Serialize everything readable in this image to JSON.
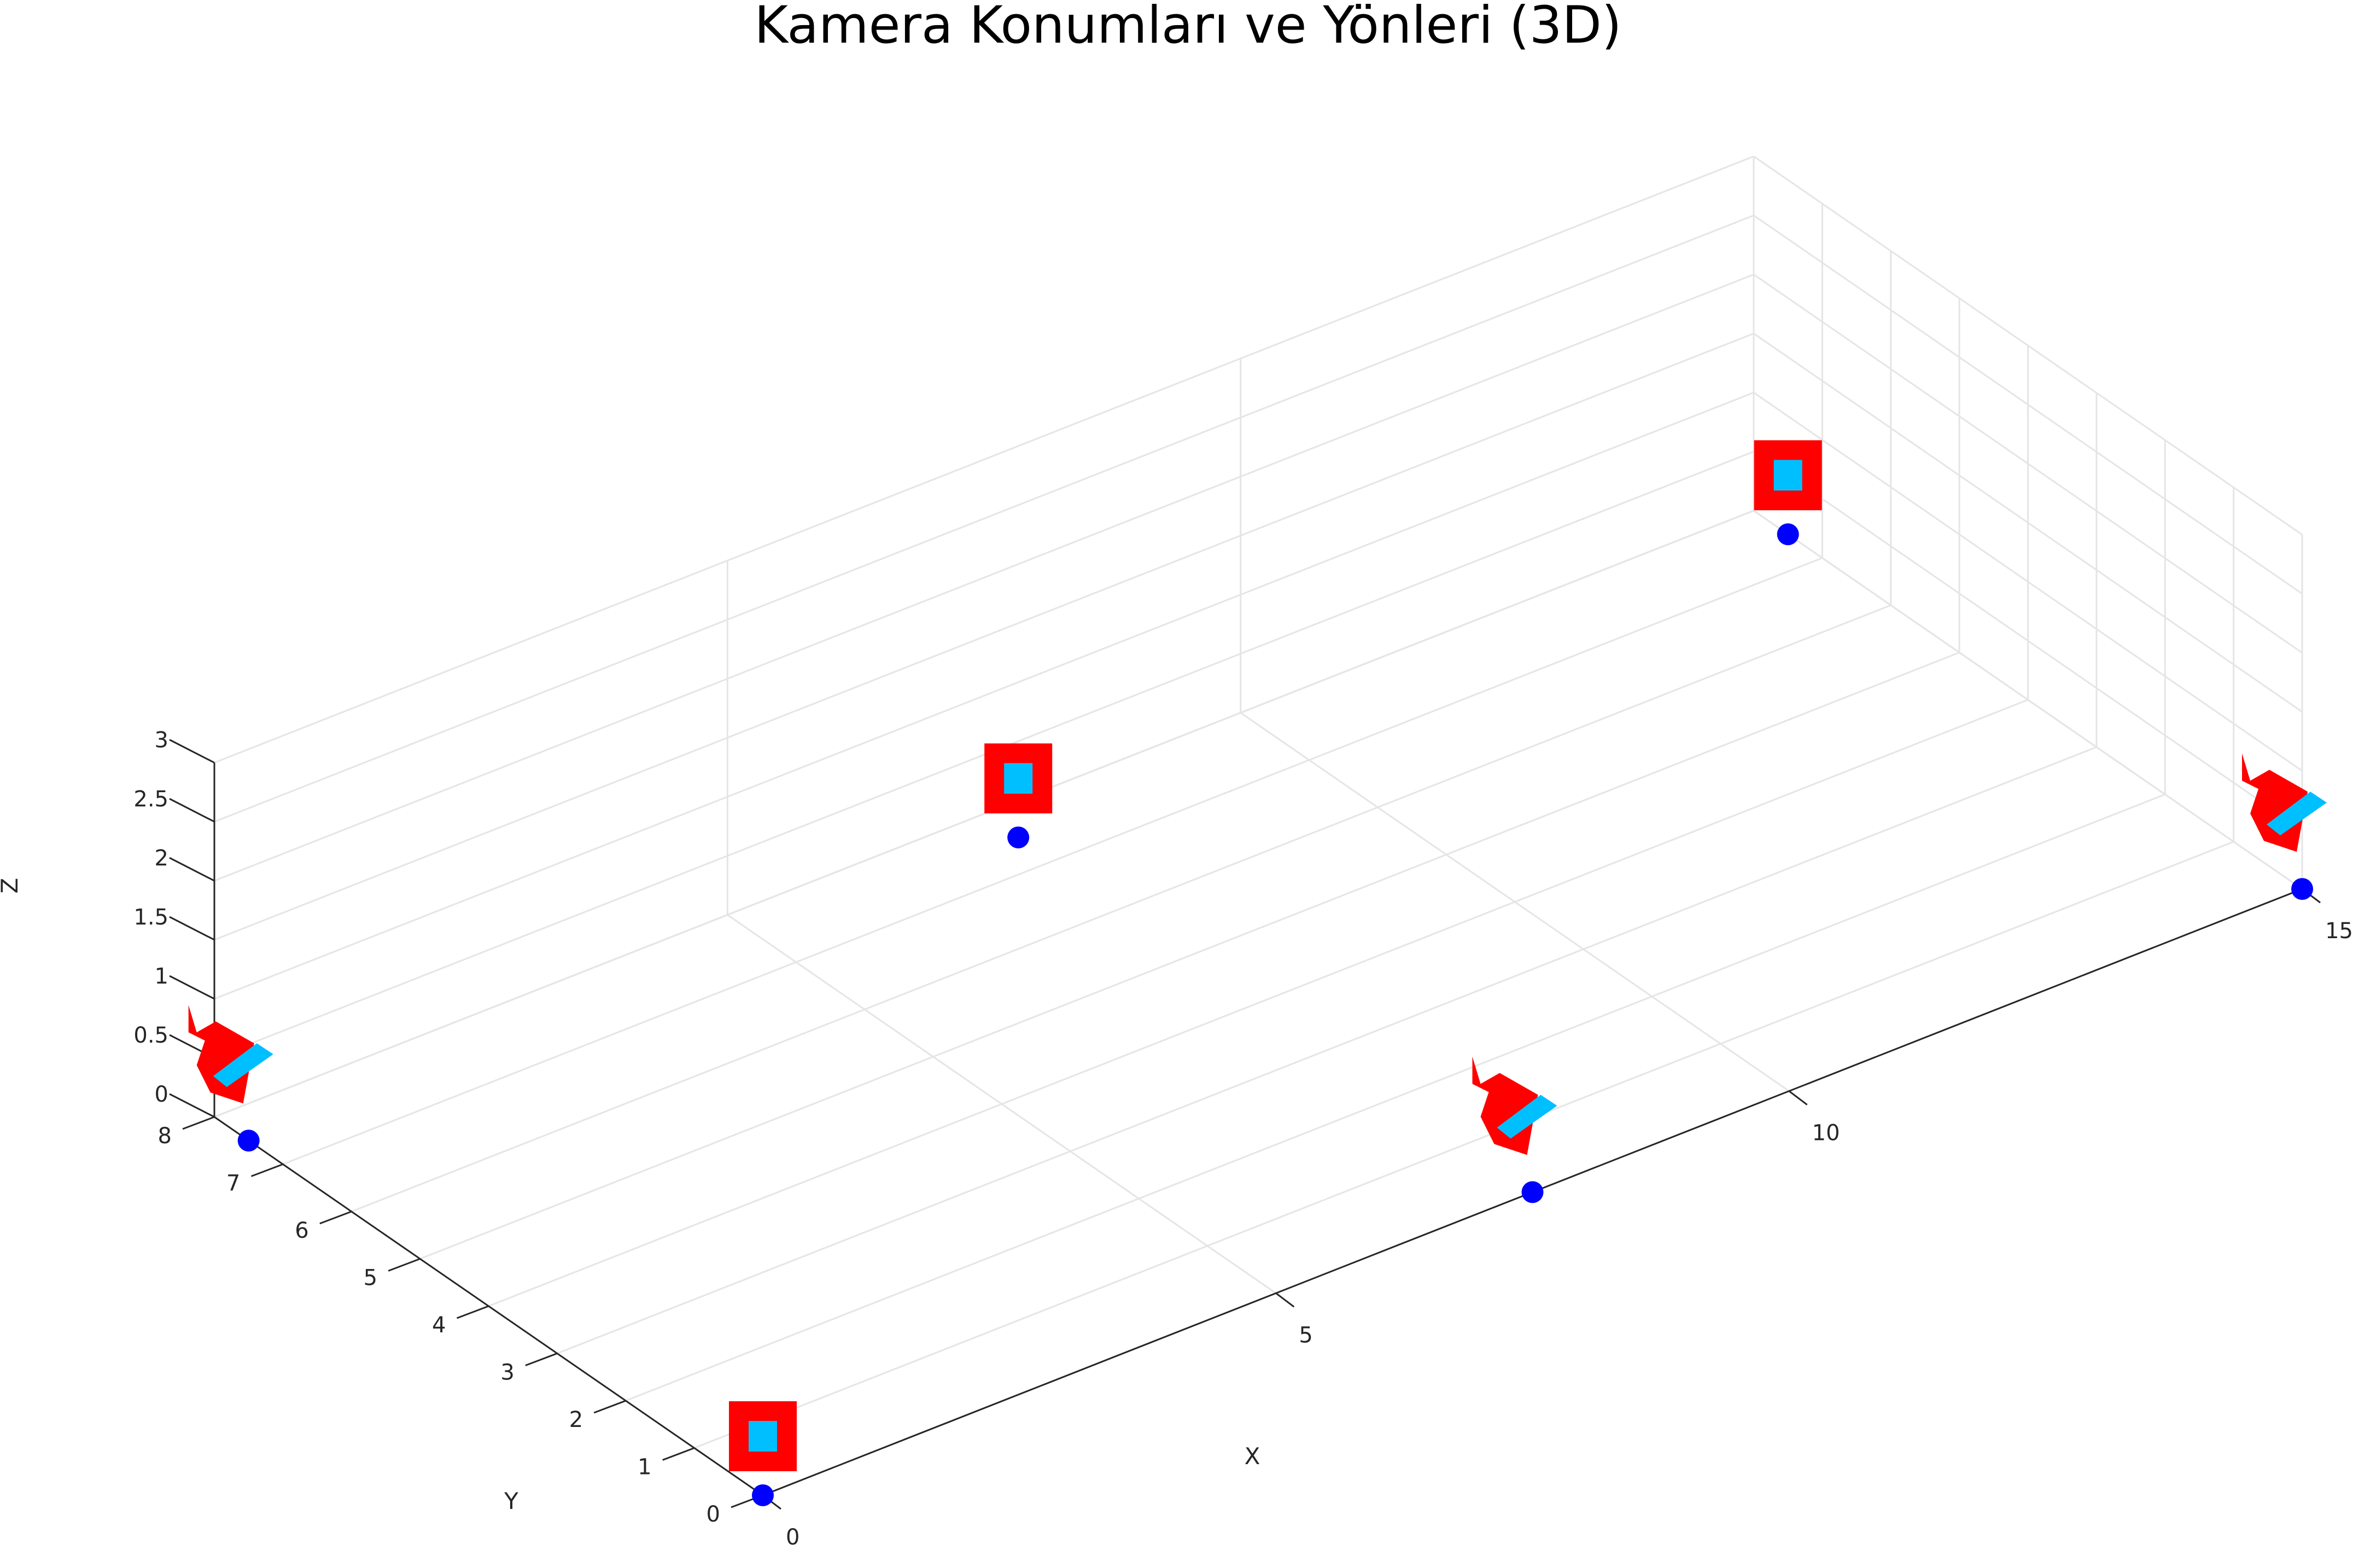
{
  "chart_data": {
    "type": "scatter",
    "title": "Kamera Konumları ve Yönleri (3D)",
    "xlabel": "X",
    "ylabel": "Y",
    "zlabel": "Z",
    "xlim": [
      0,
      15
    ],
    "ylim": [
      0,
      8
    ],
    "zlim": [
      0,
      3
    ],
    "x_ticks": [
      "0",
      "5",
      "10",
      "15"
    ],
    "y_ticks": [
      "0",
      "1",
      "2",
      "3",
      "4",
      "5",
      "6",
      "7",
      "8"
    ],
    "z_ticks": [
      "0",
      "0.5",
      "1",
      "1.5",
      "2",
      "2.5",
      "3"
    ],
    "grid": true,
    "points": [
      {
        "x": 0,
        "y": 0,
        "z": 0
      },
      {
        "x": 0,
        "y": 7.5,
        "z": 0
      },
      {
        "x": 7.5,
        "y": 0,
        "z": 0
      },
      {
        "x": 15,
        "y": 0,
        "z": 0
      },
      {
        "x": 7.5,
        "y": 7.5,
        "z": 0
      },
      {
        "x": 15,
        "y": 7.5,
        "z": 0
      }
    ],
    "cameras": [
      {
        "x": 0,
        "y": 0,
        "z": 0.5,
        "facing": "front"
      },
      {
        "x": 0,
        "y": 7.5,
        "z": 0.5,
        "facing": "side"
      },
      {
        "x": 7.5,
        "y": 0,
        "z": 0.5,
        "facing": "side"
      },
      {
        "x": 15,
        "y": 0,
        "z": 0.5,
        "facing": "side"
      },
      {
        "x": 7.5,
        "y": 7.5,
        "z": 0.5,
        "facing": "front"
      },
      {
        "x": 15,
        "y": 7.5,
        "z": 0.5,
        "facing": "front"
      }
    ],
    "colors": {
      "point": "#0000ff",
      "camera": "#ff0000",
      "lens": "#00bfff",
      "grid": "#e5e5e5",
      "axis": "#262626"
    }
  }
}
